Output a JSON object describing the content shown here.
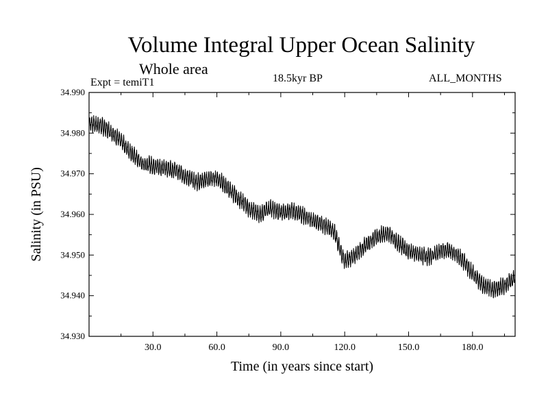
{
  "header": {
    "title": "Volume Integral Upper Ocean Salinity",
    "subtitle": "Whole area",
    "expt": "Expt = temiT1",
    "period": "18.5kyr BP",
    "months": "ALL_MONTHS"
  },
  "chart_data": {
    "type": "line",
    "title": "Volume Integral Upper Ocean Salinity",
    "xlabel": "Time (in years since start)",
    "ylabel": "Salinity (in PSU)",
    "xlim": [
      0,
      200
    ],
    "ylim": [
      34.93,
      34.99
    ],
    "xticks": [
      30,
      60,
      90,
      120,
      150,
      180
    ],
    "xtick_labels": [
      "30.0",
      "60.0",
      "90.0",
      "120.0",
      "150.0",
      "180.0"
    ],
    "yticks": [
      34.93,
      34.94,
      34.95,
      34.96,
      34.97,
      34.98,
      34.99
    ],
    "ytick_labels": [
      "34.930",
      "34.940",
      "34.950",
      "34.960",
      "34.970",
      "34.980",
      "34.990"
    ],
    "grid": false,
    "series": [
      {
        "name": "Salinity",
        "color": "#000000",
        "seasonal_amplitude": 0.0016,
        "x": [
          0,
          5,
          10,
          15,
          20,
          25,
          30,
          35,
          40,
          45,
          50,
          55,
          60,
          65,
          70,
          75,
          80,
          85,
          90,
          95,
          100,
          105,
          110,
          115,
          118,
          120,
          125,
          130,
          135,
          140,
          145,
          150,
          155,
          160,
          165,
          170,
          175,
          180,
          185,
          190,
          195,
          200
        ],
        "values": [
          34.9825,
          34.982,
          34.9805,
          34.978,
          34.975,
          34.9725,
          34.972,
          34.9715,
          34.971,
          34.9695,
          34.968,
          34.9685,
          34.969,
          34.9665,
          34.964,
          34.9615,
          34.96,
          34.9615,
          34.9605,
          34.961,
          34.96,
          34.9585,
          34.9575,
          34.956,
          34.951,
          34.9485,
          34.95,
          34.9525,
          34.9545,
          34.9555,
          34.953,
          34.951,
          34.95,
          34.9495,
          34.951,
          34.951,
          34.949,
          34.9455,
          34.9425,
          34.9415,
          34.9425,
          34.9445
        ]
      }
    ]
  }
}
